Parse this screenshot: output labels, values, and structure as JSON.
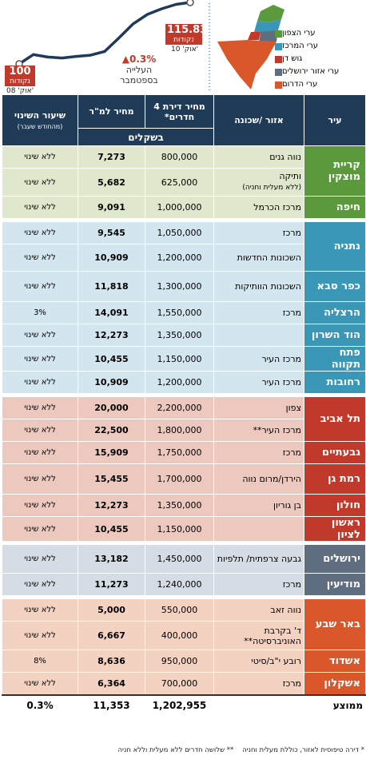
{
  "colors": {
    "north": "#5b9a3c",
    "north_light": "#dfe8cc",
    "center": "#3b97b8",
    "center_light": "#d3e5ee",
    "dan": "#c0392b",
    "dan_light": "#ecc8bf",
    "jerusalem": "#5e6e80",
    "jerusalem_light": "#d6dce3",
    "south": "#d9572a",
    "south_light": "#f3d2c2",
    "header": "#1f3b57",
    "line": "#1f3b57",
    "index_badge": "#c0392b"
  },
  "chart_data": {
    "type": "line",
    "values": [
      100,
      99.2,
      98.4,
      98.1,
      98.6,
      99.0,
      100.2,
      104.5,
      109.0,
      112.0,
      113.8,
      115.2,
      115.83
    ],
    "start": {
      "value": "100",
      "unit": "נקודות",
      "date": "אוק' 08'"
    },
    "end": {
      "value": "115.83",
      "unit": "נקודות",
      "date": "אוק' 10'"
    },
    "annotation": {
      "pct": "▲0.3%",
      "line1": "העלייה",
      "line2": "בספטמבר"
    }
  },
  "legend": [
    {
      "label": "ערי הצפון",
      "color": "#5b9a3c"
    },
    {
      "label": "ערי המרכז",
      "color": "#3b97b8"
    },
    {
      "label": "גוש דן",
      "color": "#c0392b"
    },
    {
      "label": "ערי אזור ירושלים",
      "color": "#5e6e80"
    },
    {
      "label": "ערי הדרום",
      "color": "#d9572a"
    }
  ],
  "table": {
    "headers": {
      "city": "עיר",
      "area": "אזור /שכונה",
      "price": "מחיר דירת 4 חדרים*",
      "sqm": "מחיר למ\"ר",
      "change": "שיעור השינוי",
      "change_note": "(מהחודש שעבר)",
      "currency": "בשקלים"
    },
    "groups": [
      {
        "region": "north",
        "cities": [
          {
            "name": "קריית מוצקין",
            "rows": [
              {
                "area": "נווה גנים",
                "price": "800,000",
                "sqm": "7,273",
                "change": "ללא שינוי"
              },
              {
                "area": "ותיקה",
                "area_note": "(ללא מעלית וחניה)",
                "price": "625,000",
                "sqm": "5,682",
                "change": "ללא שינוי"
              }
            ]
          },
          {
            "name": "חיפה",
            "rows": [
              {
                "area": "מרכז הכרמל",
                "price": "1,000,000",
                "sqm": "9,091",
                "change": "ללא שינוי"
              }
            ]
          }
        ]
      },
      {
        "region": "center",
        "cities": [
          {
            "name": "נתניה",
            "rows": [
              {
                "area": "מרכז",
                "price": "1,050,000",
                "sqm": "9,545",
                "change": "ללא שינוי"
              },
              {
                "area": "השכונות החדשות",
                "price": "1,200,000",
                "sqm": "10,909",
                "change": "ללא שינוי"
              }
            ]
          },
          {
            "name": "כפר סבא",
            "rows": [
              {
                "area": "השכונות הוותיקות",
                "price": "1,300,000",
                "sqm": "11,818",
                "change": "ללא שינוי"
              }
            ]
          },
          {
            "name": "הרצליה",
            "rows": [
              {
                "area": "מרכז",
                "price": "1,550,000",
                "sqm": "14,091",
                "change": "3%"
              }
            ]
          },
          {
            "name": "הוד השרון",
            "rows": [
              {
                "area": "",
                "price": "1,350,000",
                "sqm": "12,273",
                "change": "ללא שינוי"
              }
            ]
          },
          {
            "name": "פתח תקווה",
            "rows": [
              {
                "area": "מרכז העיר",
                "price": "1,150,000",
                "sqm": "10,455",
                "change": "ללא שינוי"
              }
            ]
          },
          {
            "name": "רחובות",
            "rows": [
              {
                "area": "מרכז העיר",
                "price": "1,200,000",
                "sqm": "10,909",
                "change": "ללא שינוי"
              }
            ]
          }
        ]
      },
      {
        "region": "dan",
        "cities": [
          {
            "name": "תל אביב",
            "rows": [
              {
                "area": "צפון",
                "price": "2,200,000",
                "sqm": "20,000",
                "change": "ללא שינוי"
              },
              {
                "area": "מרכז העיר**",
                "price": "1,800,000",
                "sqm": "22,500",
                "change": "ללא שינוי"
              }
            ]
          },
          {
            "name": "גבעתיים",
            "rows": [
              {
                "area": "מרכז",
                "price": "1,750,000",
                "sqm": "15,909",
                "change": "ללא שינוי"
              }
            ]
          },
          {
            "name": "רמת גן",
            "rows": [
              {
                "area": "הירדן/מרום נווה",
                "price": "1,700,000",
                "sqm": "15,455",
                "change": "ללא שינוי"
              }
            ]
          },
          {
            "name": "חולון",
            "rows": [
              {
                "area": "בן גוריון",
                "price": "1,350,000",
                "sqm": "12,273",
                "change": "ללא שינוי"
              }
            ]
          },
          {
            "name": "ראשון לציון",
            "rows": [
              {
                "area": "",
                "price": "1,150,000",
                "sqm": "10,455",
                "change": "ללא שינוי"
              }
            ]
          }
        ]
      },
      {
        "region": "jerusalem",
        "cities": [
          {
            "name": "ירושלים",
            "rows": [
              {
                "area": "גבעה צרפתית/ תלפיות",
                "price": "1,450,000",
                "sqm": "13,182",
                "change": "ללא שינוי"
              }
            ]
          },
          {
            "name": "מודיעין",
            "rows": [
              {
                "area": "מרכז",
                "price": "1,240,000",
                "sqm": "11,273",
                "change": "ללא שינוי"
              }
            ]
          }
        ]
      },
      {
        "region": "south",
        "cities": [
          {
            "name": "באר שבע",
            "rows": [
              {
                "area": "נווה זאב",
                "price": "550,000",
                "sqm": "5,000",
                "change": "ללא שינוי"
              },
              {
                "area": "ד' בקרבת האוניברסיטה**",
                "price": "400,000",
                "sqm": "6,667",
                "change": "ללא שינוי"
              }
            ]
          },
          {
            "name": "אשדוד",
            "rows": [
              {
                "area": "רובע י\"ב/סיטי",
                "price": "950,000",
                "sqm": "8,636",
                "change": "8%"
              }
            ]
          },
          {
            "name": "אשקלון",
            "rows": [
              {
                "area": "מרכז",
                "price": "700,000",
                "sqm": "6,364",
                "change": "ללא שינוי"
              }
            ]
          }
        ]
      }
    ],
    "average": {
      "label": "ממוצע",
      "price": "1,202,955",
      "sqm": "11,353",
      "change": "0.3%"
    }
  },
  "footnotes": {
    "one": "* דירה טיפוסית לאזור, כוללת מעלית וחניה",
    "two": "** שלושה חדרים ללא מעלית וללא חניה"
  }
}
